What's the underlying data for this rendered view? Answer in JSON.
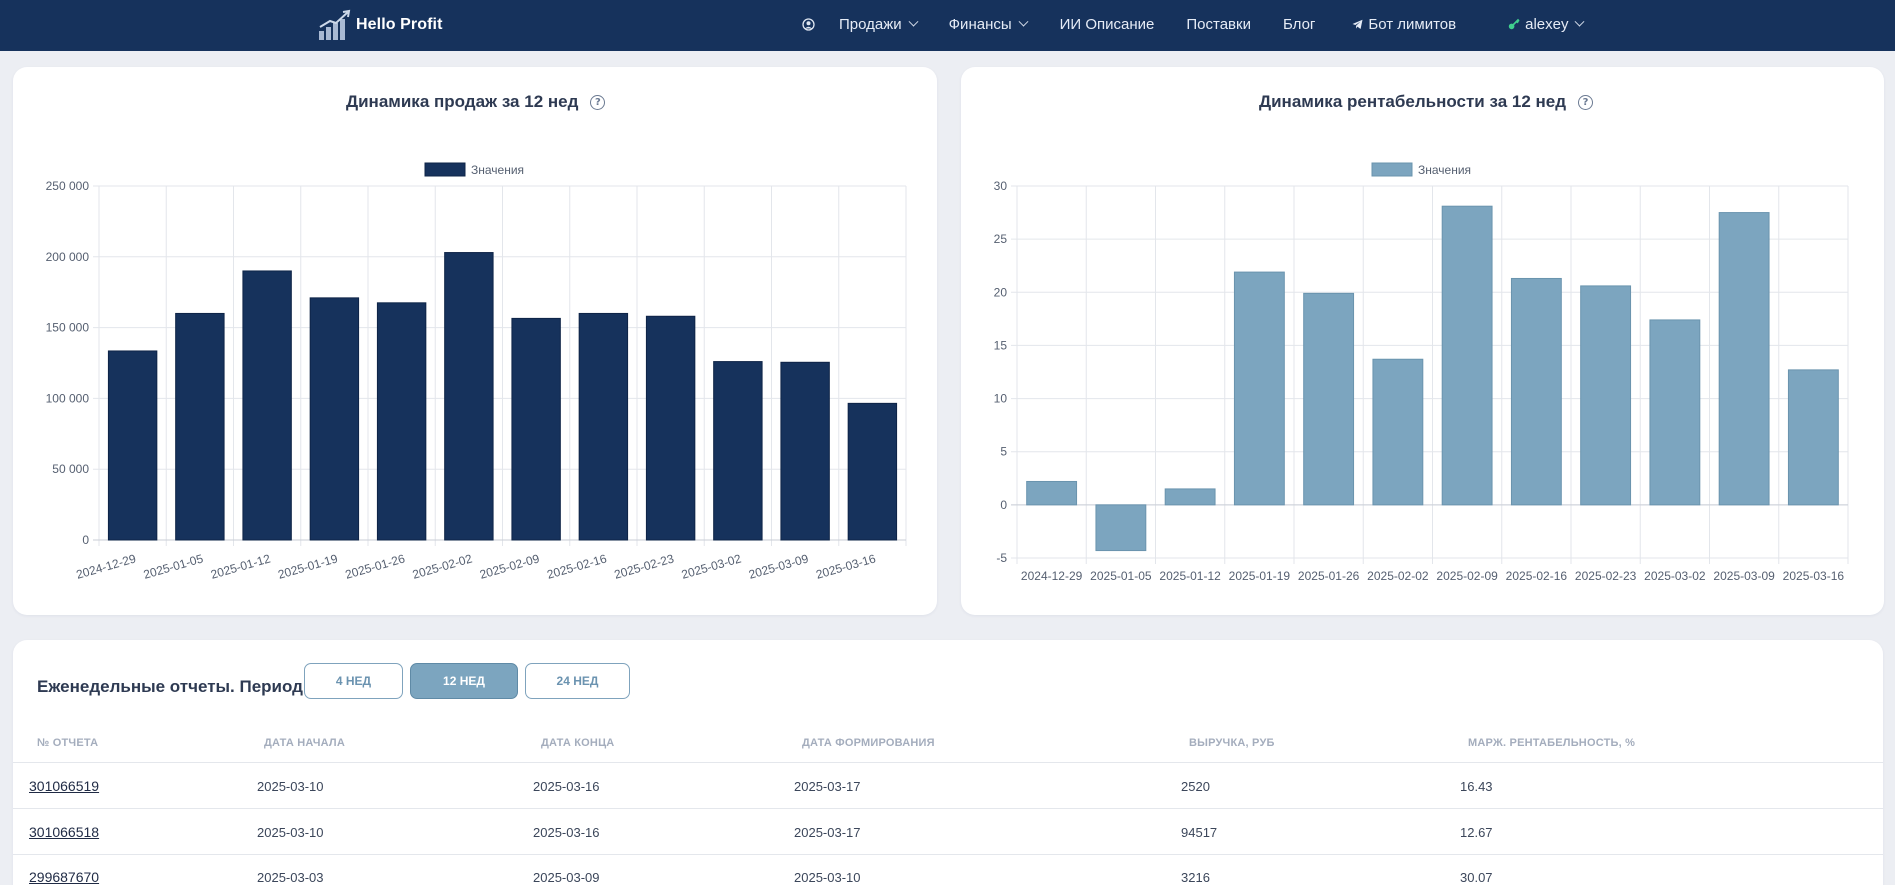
{
  "brand": {
    "name": "Hello Profit"
  },
  "nav": {
    "user_icon": "user-circle-icon",
    "items": [
      {
        "label": "Продажи",
        "dropdown": true
      },
      {
        "label": "Финансы",
        "dropdown": true
      },
      {
        "label": "ИИ Описание",
        "dropdown": false
      },
      {
        "label": "Поставки",
        "dropdown": false
      },
      {
        "label": "Блог",
        "dropdown": false
      },
      {
        "label": "Бот лимитов",
        "dropdown": false,
        "icon": "telegram-icon"
      },
      {
        "label": "alexey",
        "dropdown": true,
        "icon": "key-icon"
      }
    ]
  },
  "colors": {
    "navbar": "#16325c",
    "sales_bar": "#16325c",
    "profit_bar": "#7ca5bf",
    "page_bg": "#eceef3"
  },
  "sales_card": {
    "title": "Динамика продаж за 12 нед"
  },
  "profit_card": {
    "title": "Динамика рентабельности за 12 нед"
  },
  "chart_data": [
    {
      "type": "bar",
      "title": "Динамика продаж за 12 нед",
      "legend": [
        "Значения"
      ],
      "legend_position": "top-center",
      "grid": true,
      "categories": [
        "2024-12-29",
        "2025-01-05",
        "2025-01-12",
        "2025-01-19",
        "2025-01-26",
        "2025-02-02",
        "2025-02-09",
        "2025-02-16",
        "2025-02-23",
        "2025-03-02",
        "2025-03-09",
        "2025-03-16"
      ],
      "series": [
        {
          "name": "Значения",
          "values": [
            133500,
            160000,
            190000,
            171000,
            167500,
            203000,
            156500,
            160000,
            158000,
            126000,
            125500,
            96500
          ]
        }
      ],
      "ylim": [
        0,
        250000
      ],
      "yticks": [
        0,
        50000,
        100000,
        150000,
        200000,
        250000
      ],
      "ytick_labels": [
        "0",
        "50 000",
        "100 000",
        "150 000",
        "200 000",
        "250 000"
      ],
      "xtick_rotation": "rotated"
    },
    {
      "type": "bar",
      "title": "Динамика рентабельности за 12 нед",
      "legend": [
        "Значения"
      ],
      "legend_position": "top-center",
      "grid": true,
      "categories": [
        "2024-12-29",
        "2025-01-05",
        "2025-01-12",
        "2025-01-19",
        "2025-01-26",
        "2025-02-02",
        "2025-02-09",
        "2025-02-16",
        "2025-02-23",
        "2025-03-02",
        "2025-03-09",
        "2025-03-16"
      ],
      "series": [
        {
          "name": "Значения",
          "values": [
            2.2,
            -4.3,
            1.5,
            21.9,
            19.9,
            13.7,
            28.1,
            21.3,
            20.6,
            17.4,
            27.5,
            12.7
          ]
        }
      ],
      "ylim": [
        -5,
        30
      ],
      "yticks": [
        -5,
        0,
        5,
        10,
        15,
        20,
        25,
        30
      ],
      "ytick_labels": [
        "-5",
        "0",
        "5",
        "10",
        "15",
        "20",
        "25",
        "30"
      ],
      "xtick_rotation": "horizontal"
    }
  ],
  "reports": {
    "title": "Еженедельные отчеты. Период:",
    "periods": [
      {
        "label": "4 НЕД",
        "active": false
      },
      {
        "label": "12 НЕД",
        "active": true
      },
      {
        "label": "24 НЕД",
        "active": false
      }
    ],
    "columns": [
      "№ ОТЧЕТА",
      "ДАТА НАЧАЛА",
      "ДАТА КОНЦА",
      "ДАТА ФОРМИРОВАНИЯ",
      "ВЫРУЧКА, РУБ",
      "МАРЖ. РЕНТАБЕЛЬНОСТЬ, %"
    ],
    "rows": [
      [
        "301066519",
        "2025-03-10",
        "2025-03-16",
        "2025-03-17",
        "2520",
        "16.43"
      ],
      [
        "301066518",
        "2025-03-10",
        "2025-03-16",
        "2025-03-17",
        "94517",
        "12.67"
      ],
      [
        "299687670",
        "2025-03-03",
        "2025-03-09",
        "2025-03-10",
        "3216",
        "30.07"
      ]
    ]
  }
}
